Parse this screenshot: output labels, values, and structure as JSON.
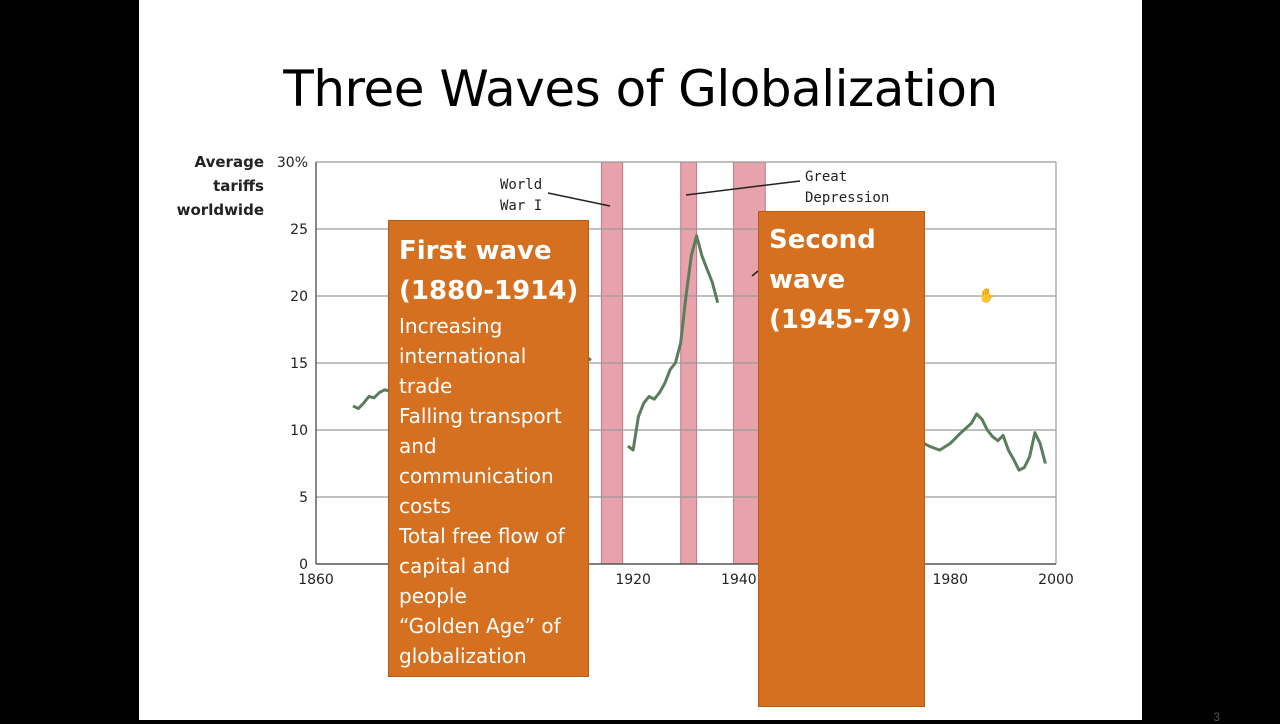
{
  "slide": {
    "title": "Three Waves of Globalization",
    "page_number": "3"
  },
  "annotations": {
    "ww1": [
      "World",
      "War I"
    ],
    "depression": [
      "Great",
      "Depression"
    ]
  },
  "first_wave": {
    "heading": [
      "First wave",
      "(1880-1914)"
    ],
    "lines": [
      "Increasing",
      "international",
      "trade",
      "Falling transport",
      "and",
      "communication",
      "costs",
      "Total free flow of",
      "capital and",
      "people",
      "“Golden Age” of",
      "globalization"
    ]
  },
  "second_wave": {
    "heading": [
      "Second",
      "wave",
      "(1945-79)"
    ]
  },
  "colors": {
    "box": "#d57020",
    "line": "#5a7d5c",
    "band": "#e8a2ab",
    "grid": "#9a9a9a"
  },
  "chart_data": {
    "type": "line",
    "ylabel": [
      "Average",
      "tariffs",
      "worldwide"
    ],
    "xlim": [
      1860,
      2000
    ],
    "ylim": [
      0,
      30
    ],
    "x_ticks": [
      "1860",
      "1920",
      "1940",
      "1980",
      "2000"
    ],
    "x_tick_values": [
      1860,
      1920,
      1940,
      1980,
      2000
    ],
    "y_ticks": [
      "0",
      "5",
      "10",
      "15",
      "20",
      "25",
      "30%"
    ],
    "y_tick_values": [
      0,
      5,
      10,
      15,
      20,
      25,
      30
    ],
    "grid": true,
    "shaded_periods": [
      [
        1914,
        1918
      ],
      [
        1929,
        1932
      ],
      [
        1939,
        1945
      ]
    ],
    "series": [
      {
        "points": [
          [
            1867,
            11.8
          ],
          [
            1868,
            11.6
          ],
          [
            1869,
            12.0
          ],
          [
            1870,
            12.5
          ],
          [
            1871,
            12.4
          ],
          [
            1872,
            12.8
          ],
          [
            1873,
            13.0
          ],
          [
            1874,
            12.9
          ],
          [
            1875,
            13.2
          ],
          [
            1876,
            13.0
          ],
          [
            1877,
            12.5
          ],
          [
            1878,
            12.9
          ],
          [
            1910,
            15.0
          ],
          [
            1911,
            15.5
          ],
          [
            1912,
            15.2
          ],
          [
            1919,
            8.8
          ],
          [
            1920,
            8.5
          ],
          [
            1921,
            11.0
          ],
          [
            1922,
            12.0
          ],
          [
            1923,
            12.5
          ],
          [
            1924,
            12.3
          ],
          [
            1925,
            12.8
          ],
          [
            1926,
            13.5
          ],
          [
            1927,
            14.5
          ],
          [
            1928,
            15.0
          ],
          [
            1929,
            16.5
          ],
          [
            1930,
            20.0
          ],
          [
            1931,
            23.0
          ],
          [
            1932,
            24.5
          ],
          [
            1933,
            23.0
          ],
          [
            1934,
            22.0
          ],
          [
            1935,
            21.0
          ],
          [
            1936,
            19.5
          ],
          [
            1970,
            11.0
          ],
          [
            1971,
            11.2
          ],
          [
            1972,
            10.5
          ],
          [
            1973,
            10.8
          ],
          [
            1974,
            9.5
          ],
          [
            1975,
            9.0
          ],
          [
            1976,
            8.8
          ],
          [
            1978,
            8.5
          ],
          [
            1980,
            9.0
          ],
          [
            1982,
            9.8
          ],
          [
            1984,
            10.5
          ],
          [
            1985,
            11.2
          ],
          [
            1986,
            10.8
          ],
          [
            1987,
            10.0
          ],
          [
            1988,
            9.5
          ],
          [
            1989,
            9.2
          ],
          [
            1990,
            9.6
          ],
          [
            1991,
            8.5
          ],
          [
            1992,
            7.8
          ],
          [
            1993,
            7.0
          ],
          [
            1994,
            7.2
          ],
          [
            1995,
            8.0
          ],
          [
            1996,
            9.8
          ],
          [
            1997,
            9.0
          ],
          [
            1998,
            7.5
          ]
        ],
        "breaks_after": [
          1878,
          1912,
          1936
        ]
      }
    ]
  }
}
